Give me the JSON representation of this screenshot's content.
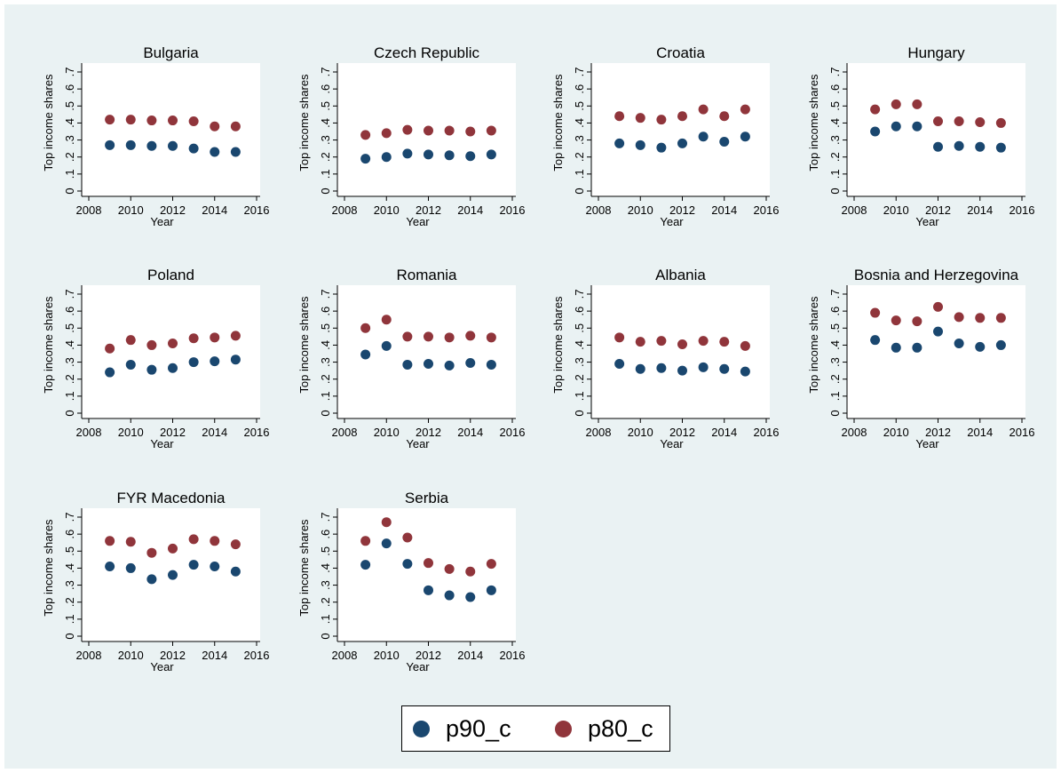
{
  "colors": {
    "p90_c": "#1a476f",
    "p80_c": "#90353b",
    "plot_bg": "#ffffff",
    "graph_bg": "#eaf2f3"
  },
  "legend": {
    "p90_label": "p90_c",
    "p80_label": "p80_c"
  },
  "chart_data": [
    {
      "type": "scatter",
      "title": "Bulgaria",
      "xlabel": "Year",
      "ylabel": "Top income shares",
      "xlim": [
        2008,
        2016
      ],
      "ylim": [
        0,
        0.7
      ],
      "x": [
        2009,
        2010,
        2011,
        2012,
        2013,
        2014,
        2015
      ],
      "series": [
        {
          "name": "p90_c",
          "values": [
            0.27,
            0.27,
            0.265,
            0.265,
            0.25,
            0.23,
            0.23
          ]
        },
        {
          "name": "p80_c",
          "values": [
            0.42,
            0.42,
            0.415,
            0.415,
            0.41,
            0.38,
            0.38
          ]
        }
      ]
    },
    {
      "type": "scatter",
      "title": "Czech Republic",
      "xlabel": "Year",
      "ylabel": "Top income shares",
      "xlim": [
        2008,
        2016
      ],
      "ylim": [
        0,
        0.7
      ],
      "x": [
        2009,
        2010,
        2011,
        2012,
        2013,
        2014,
        2015
      ],
      "series": [
        {
          "name": "p90_c",
          "values": [
            0.19,
            0.2,
            0.22,
            0.215,
            0.21,
            0.205,
            0.215
          ]
        },
        {
          "name": "p80_c",
          "values": [
            0.33,
            0.34,
            0.36,
            0.355,
            0.355,
            0.35,
            0.355
          ]
        }
      ]
    },
    {
      "type": "scatter",
      "title": "Croatia",
      "xlabel": "Year",
      "ylabel": "Top income shares",
      "xlim": [
        2008,
        2016
      ],
      "ylim": [
        0,
        0.7
      ],
      "x": [
        2009,
        2010,
        2011,
        2012,
        2013,
        2014,
        2015
      ],
      "series": [
        {
          "name": "p90_c",
          "values": [
            0.28,
            0.27,
            0.255,
            0.28,
            0.32,
            0.29,
            0.32
          ]
        },
        {
          "name": "p80_c",
          "values": [
            0.44,
            0.43,
            0.42,
            0.44,
            0.48,
            0.44,
            0.48
          ]
        }
      ]
    },
    {
      "type": "scatter",
      "title": "Hungary",
      "xlabel": "Year",
      "ylabel": "Top income shares",
      "xlim": [
        2008,
        2016
      ],
      "ylim": [
        0,
        0.7
      ],
      "x": [
        2009,
        2010,
        2011,
        2012,
        2013,
        2014,
        2015
      ],
      "series": [
        {
          "name": "p90_c",
          "values": [
            0.35,
            0.38,
            0.38,
            0.26,
            0.265,
            0.26,
            0.255
          ]
        },
        {
          "name": "p80_c",
          "values": [
            0.48,
            0.51,
            0.51,
            0.41,
            0.41,
            0.405,
            0.4
          ]
        }
      ]
    },
    {
      "type": "scatter",
      "title": "Poland",
      "xlabel": "Year",
      "ylabel": "Top income shares",
      "xlim": [
        2008,
        2016
      ],
      "ylim": [
        0,
        0.7
      ],
      "x": [
        2009,
        2010,
        2011,
        2012,
        2013,
        2014,
        2015
      ],
      "series": [
        {
          "name": "p90_c",
          "values": [
            0.24,
            0.285,
            0.255,
            0.265,
            0.3,
            0.305,
            0.315
          ]
        },
        {
          "name": "p80_c",
          "values": [
            0.38,
            0.43,
            0.4,
            0.41,
            0.44,
            0.445,
            0.455
          ]
        }
      ]
    },
    {
      "type": "scatter",
      "title": "Romania",
      "xlabel": "Year",
      "ylabel": "Top income shares",
      "xlim": [
        2008,
        2016
      ],
      "ylim": [
        0,
        0.7
      ],
      "x": [
        2009,
        2010,
        2011,
        2012,
        2013,
        2014,
        2015
      ],
      "series": [
        {
          "name": "p90_c",
          "values": [
            0.345,
            0.395,
            0.285,
            0.29,
            0.28,
            0.295,
            0.285
          ]
        },
        {
          "name": "p80_c",
          "values": [
            0.5,
            0.55,
            0.45,
            0.45,
            0.445,
            0.455,
            0.445
          ]
        }
      ]
    },
    {
      "type": "scatter",
      "title": "Albania",
      "xlabel": "Year",
      "ylabel": "Top income shares",
      "xlim": [
        2008,
        2016
      ],
      "ylim": [
        0,
        0.7
      ],
      "x": [
        2009,
        2010,
        2011,
        2012,
        2013,
        2014,
        2015
      ],
      "series": [
        {
          "name": "p90_c",
          "values": [
            0.29,
            0.26,
            0.265,
            0.25,
            0.27,
            0.26,
            0.245
          ]
        },
        {
          "name": "p80_c",
          "values": [
            0.445,
            0.42,
            0.425,
            0.405,
            0.425,
            0.42,
            0.395
          ]
        }
      ]
    },
    {
      "type": "scatter",
      "title": "Bosnia and Herzegovina",
      "xlabel": "Year",
      "ylabel": "Top income shares",
      "xlim": [
        2008,
        2016
      ],
      "ylim": [
        0,
        0.7
      ],
      "x": [
        2009,
        2010,
        2011,
        2012,
        2013,
        2014,
        2015
      ],
      "series": [
        {
          "name": "p90_c",
          "values": [
            0.43,
            0.385,
            0.385,
            0.48,
            0.41,
            0.39,
            0.4
          ]
        },
        {
          "name": "p80_c",
          "values": [
            0.59,
            0.545,
            0.54,
            0.625,
            0.565,
            0.56,
            0.56
          ]
        }
      ]
    },
    {
      "type": "scatter",
      "title": "FYR Macedonia",
      "xlabel": "Year",
      "ylabel": "Top income shares",
      "xlim": [
        2008,
        2016
      ],
      "ylim": [
        0,
        0.7
      ],
      "x": [
        2009,
        2010,
        2011,
        2012,
        2013,
        2014,
        2015
      ],
      "series": [
        {
          "name": "p90_c",
          "values": [
            0.41,
            0.4,
            0.335,
            0.36,
            0.42,
            0.41,
            0.38
          ]
        },
        {
          "name": "p80_c",
          "values": [
            0.56,
            0.555,
            0.49,
            0.515,
            0.57,
            0.56,
            0.54
          ]
        }
      ]
    },
    {
      "type": "scatter",
      "title": "Serbia",
      "xlabel": "Year",
      "ylabel": "Top income shares",
      "xlim": [
        2008,
        2016
      ],
      "ylim": [
        0,
        0.7
      ],
      "x": [
        2009,
        2010,
        2011,
        2012,
        2013,
        2014,
        2015
      ],
      "series": [
        {
          "name": "p90_c",
          "values": [
            0.42,
            0.545,
            0.425,
            0.27,
            0.24,
            0.23,
            0.27
          ]
        },
        {
          "name": "p80_c",
          "values": [
            0.56,
            0.67,
            0.58,
            0.43,
            0.395,
            0.38,
            0.425
          ]
        }
      ]
    }
  ],
  "axis": {
    "xticks": [
      2008,
      2010,
      2012,
      2014,
      2016
    ],
    "yticks": [
      "0",
      ".1",
      ".2",
      ".3",
      ".4",
      ".5",
      ".6",
      ".7"
    ]
  }
}
